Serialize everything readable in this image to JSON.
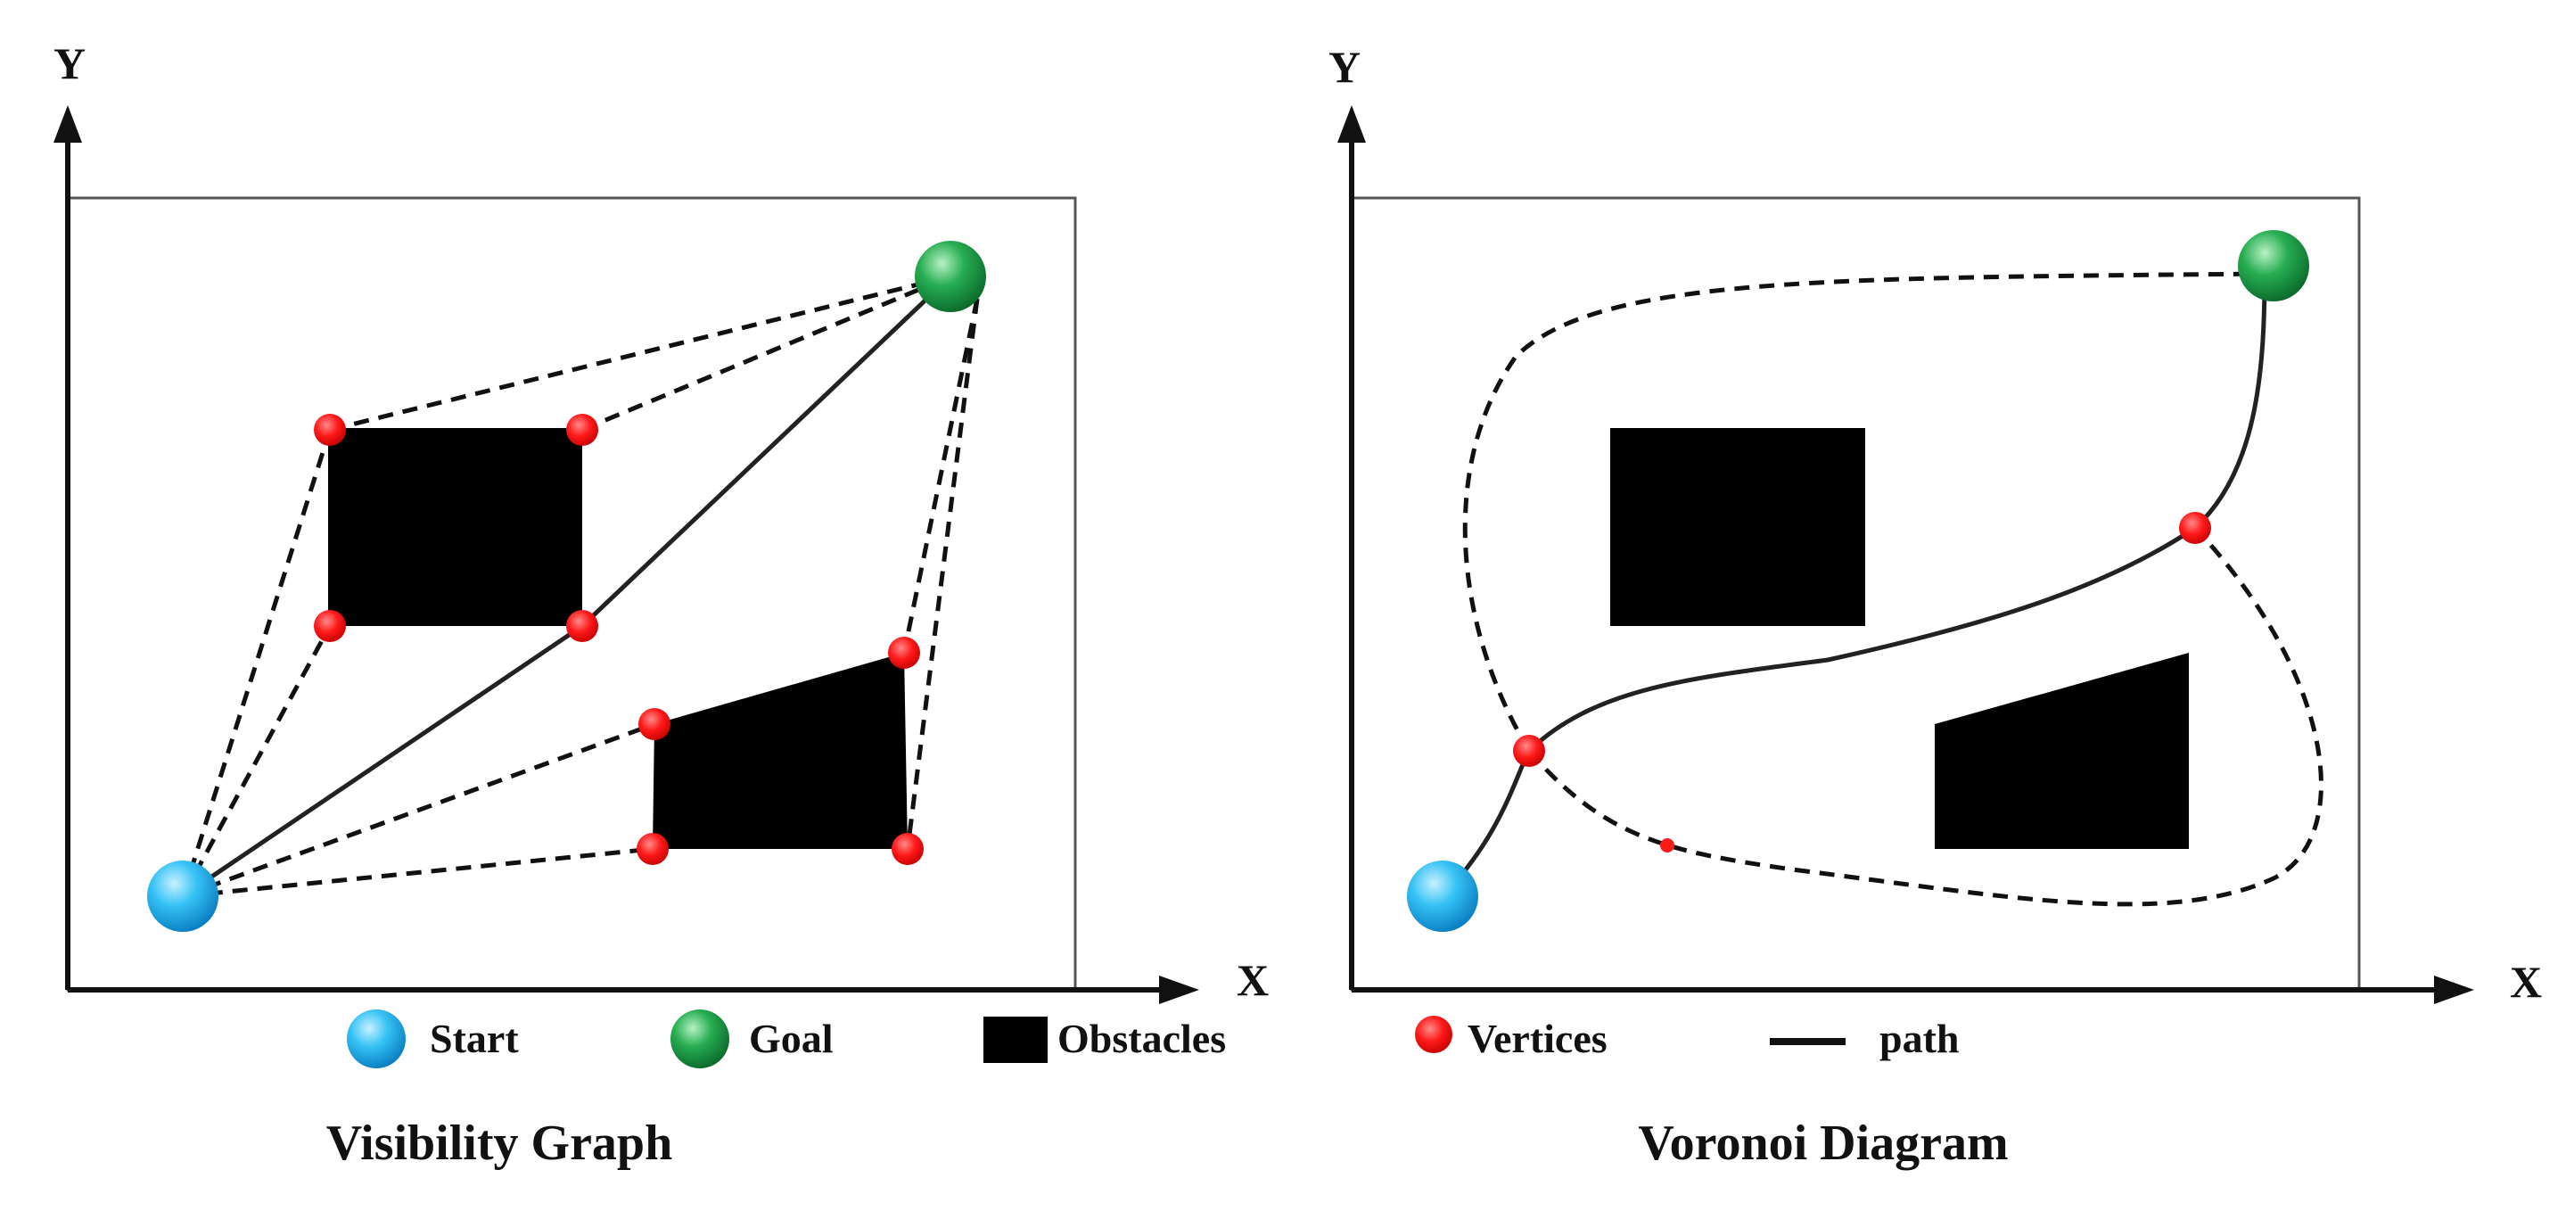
{
  "legend": {
    "start": "Start",
    "goal": "Goal",
    "obstacles": "Obstacles",
    "vertices": "Vertices",
    "path": "path"
  },
  "panels": [
    {
      "id": "visibility",
      "caption": "Visibility Graph",
      "x_axis_label": "X",
      "y_axis_label": "Y"
    },
    {
      "id": "voronoi",
      "caption": "Voronoi Diagram",
      "x_axis_label": "X",
      "y_axis_label": "Y"
    }
  ],
  "colors": {
    "start": "#29b6f6",
    "goal": "#1fa34a",
    "obstacle": "#000000",
    "vertex": "#ff1a1a",
    "path": "#222222",
    "frame": "#555555"
  }
}
